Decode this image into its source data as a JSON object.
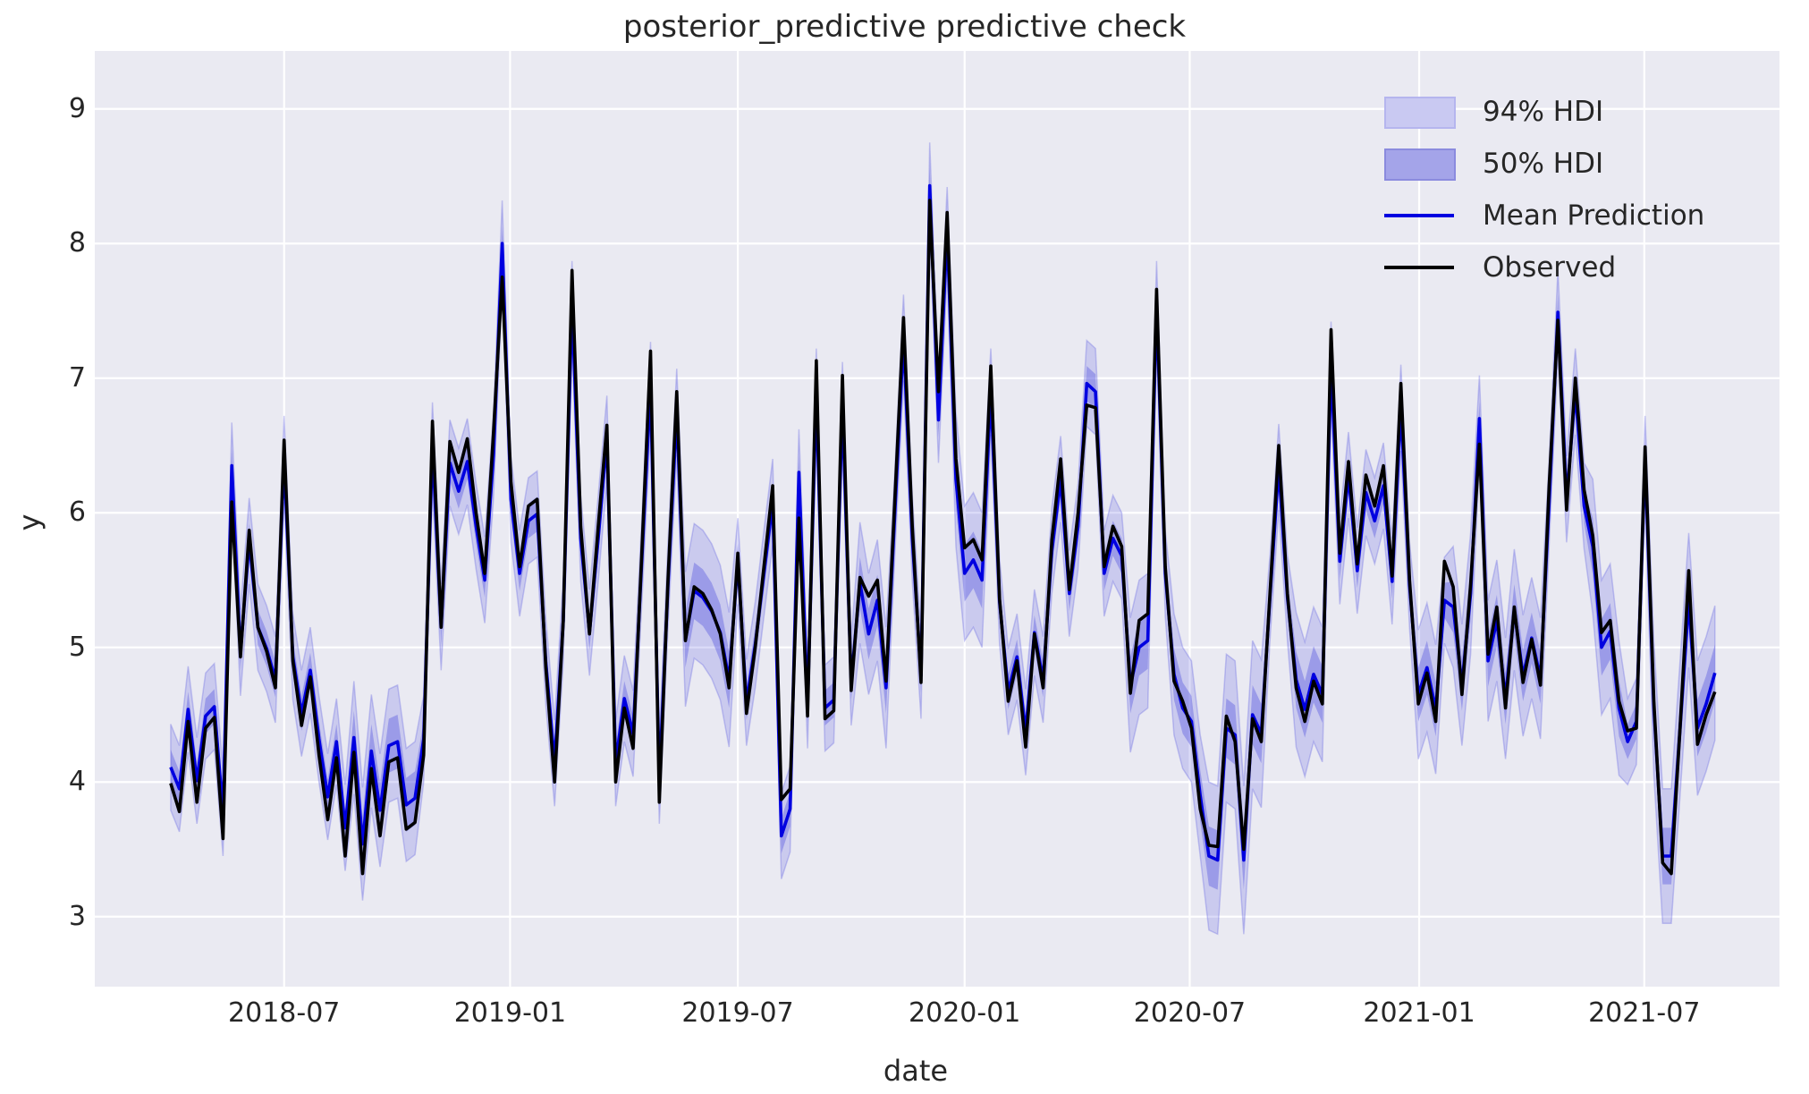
{
  "title": "posterior_predictive predictive check",
  "axes": {
    "xlabel": "date",
    "ylabel": "y",
    "y_ticks": [
      3,
      4,
      5,
      6,
      7,
      8,
      9
    ],
    "x_tick_labels": [
      "2018-07",
      "2019-01",
      "2019-07",
      "2020-01",
      "2020-07",
      "2021-01",
      "2021-07"
    ],
    "x_tick_weeks": [
      13.0,
      38.9,
      65.0,
      91.0,
      116.8,
      143.1,
      168.9
    ],
    "x_domain_weeks": [
      -8.7,
      184.4
    ],
    "ylim": [
      2.48,
      9.43
    ],
    "grid": "on"
  },
  "legend": {
    "items": [
      {
        "label": "94% HDI",
        "type": "patch",
        "key": "hdi94"
      },
      {
        "label": "50% HDI",
        "type": "patch",
        "key": "hdi50"
      },
      {
        "label": "Mean Prediction",
        "type": "line",
        "key": "mean"
      },
      {
        "label": "Observed",
        "type": "line",
        "key": "observed"
      }
    ]
  },
  "colors": {
    "figure_bg": "#ffffff",
    "axes_bg": "#eaeaf2",
    "grid": "#ffffff",
    "text": "#262626",
    "observed_line": "#000000",
    "mean_line": "#0000e0",
    "band94_fill": "rgba(90,90,224,0.22)",
    "band94_edge": "rgba(90,90,224,0.30)",
    "band50_fill": "rgba(90,90,224,0.42)",
    "legend_94_fill": "#c9c9f2",
    "legend_94_edge": "#b5b5ee",
    "legend_50_fill": "#a4a4e9",
    "legend_50_edge": "#8b8bde"
  },
  "chart_data": {
    "type": "line",
    "title": "posterior_predictive predictive check",
    "xlabel": "date",
    "ylabel": "y",
    "x_start_date": "2018-04-01",
    "x_step_days": 7,
    "n_points": 178,
    "series": [
      {
        "name": "Observed",
        "values": [
          3.99,
          3.78,
          4.45,
          3.85,
          4.4,
          4.48,
          3.58,
          6.08,
          4.93,
          5.87,
          5.15,
          4.97,
          4.7,
          6.54,
          4.9,
          4.42,
          4.78,
          4.2,
          3.72,
          4.18,
          3.45,
          4.22,
          3.32,
          4.1,
          3.6,
          4.15,
          4.18,
          3.65,
          3.7,
          4.2,
          6.68,
          5.15,
          6.53,
          6.3,
          6.55,
          6.0,
          5.55,
          6.6,
          7.75,
          6.23,
          5.6,
          6.05,
          6.1,
          4.85,
          4.0,
          5.2,
          7.8,
          5.9,
          5.1,
          5.9,
          6.65,
          4.0,
          4.55,
          4.25,
          5.7,
          7.2,
          3.85,
          5.5,
          6.9,
          5.05,
          5.45,
          5.4,
          5.28,
          5.1,
          4.7,
          5.7,
          4.51,
          5.0,
          5.6,
          6.2,
          3.87,
          3.95,
          5.96,
          4.49,
          7.13,
          4.47,
          4.53,
          7.02,
          4.68,
          5.52,
          5.38,
          5.5,
          4.75,
          6.1,
          7.45,
          5.9,
          4.74,
          8.32,
          6.9,
          8.23,
          6.4,
          5.74,
          5.8,
          5.65,
          7.09,
          5.36,
          4.6,
          4.9,
          4.26,
          5.1,
          4.7,
          5.8,
          6.4,
          5.43,
          6.0,
          6.8,
          6.78,
          5.6,
          5.9,
          5.75,
          4.66,
          5.2,
          5.25,
          7.66,
          5.6,
          4.75,
          4.6,
          4.4,
          3.8,
          3.53,
          3.52,
          4.49,
          4.3,
          3.5,
          4.47,
          4.3,
          5.4,
          6.5,
          5.4,
          4.7,
          4.45,
          4.75,
          4.58,
          7.36,
          5.7,
          6.38,
          5.62,
          6.28,
          6.05,
          6.35,
          5.53,
          6.96,
          5.5,
          4.58,
          4.81,
          4.45,
          5.64,
          5.45,
          4.65,
          5.47,
          6.51,
          4.95,
          5.3,
          4.55,
          5.3,
          4.74,
          5.06,
          4.72,
          6.2,
          7.43,
          6.02,
          7.0,
          6.17,
          5.83,
          5.11,
          5.2,
          4.6,
          4.38,
          4.4,
          6.49,
          4.6,
          3.4,
          3.32,
          4.4,
          5.57,
          4.28,
          4.5,
          4.67
        ]
      },
      {
        "name": "Mean Prediction",
        "values": [
          4.11,
          3.95,
          4.54,
          4.01,
          4.49,
          4.56,
          3.77,
          6.35,
          4.96,
          5.79,
          5.15,
          4.99,
          4.76,
          6.4,
          4.93,
          4.51,
          4.83,
          4.32,
          3.89,
          4.3,
          3.66,
          4.33,
          3.54,
          4.23,
          3.79,
          4.27,
          4.3,
          3.83,
          3.88,
          4.32,
          6.5,
          5.15,
          6.37,
          6.16,
          6.38,
          5.9,
          5.5,
          6.43,
          8.0,
          6.1,
          5.55,
          5.94,
          5.99,
          4.89,
          4.14,
          5.2,
          7.55,
          5.81,
          5.11,
          5.81,
          6.55,
          4.14,
          4.62,
          4.36,
          5.64,
          6.95,
          4.01,
          5.46,
          6.75,
          5.06,
          5.42,
          5.37,
          5.27,
          5.11,
          4.76,
          5.64,
          4.59,
          5.02,
          5.55,
          6.08,
          3.6,
          3.8,
          6.3,
          4.57,
          6.9,
          4.55,
          4.61,
          6.8,
          4.74,
          5.48,
          5.1,
          5.35,
          4.7,
          6.0,
          7.3,
          5.81,
          4.79,
          8.43,
          6.69,
          8.1,
          6.25,
          5.55,
          5.65,
          5.5,
          6.9,
          5.34,
          4.67,
          4.93,
          4.37,
          5.11,
          4.76,
          5.72,
          6.25,
          5.4,
          5.9,
          6.96,
          6.9,
          5.55,
          5.81,
          5.68,
          4.72,
          5.0,
          5.05,
          7.55,
          5.55,
          4.8,
          4.55,
          4.45,
          3.9,
          3.45,
          3.42,
          4.4,
          4.35,
          3.42,
          4.5,
          4.36,
          5.37,
          6.34,
          5.37,
          4.76,
          4.54,
          4.8,
          4.65,
          7.1,
          5.64,
          6.28,
          5.57,
          6.15,
          5.94,
          6.2,
          5.49,
          6.78,
          5.46,
          4.65,
          4.85,
          4.54,
          5.35,
          5.3,
          4.72,
          5.4,
          6.7,
          4.9,
          5.2,
          4.62,
          5.28,
          4.79,
          5.07,
          4.77,
          6.08,
          7.49,
          6.1,
          6.9,
          6.05,
          5.75,
          5.0,
          5.12,
          4.55,
          4.3,
          4.45,
          6.4,
          4.55,
          3.45,
          3.45,
          4.4,
          5.35,
          4.4,
          4.58,
          4.81
        ]
      }
    ],
    "bands": {
      "hdi94": {
        "label": "94% HDI",
        "center_series": "Mean Prediction",
        "halfwidth_default": 0.32,
        "halfwidth_regions": [
          {
            "from": 21,
            "to": 28,
            "half": 0.42
          },
          {
            "from": 59,
            "to": 64,
            "half": 0.5
          },
          {
            "from": 79,
            "to": 82,
            "half": 0.45
          },
          {
            "from": 90,
            "to": 93,
            "half": 0.5
          },
          {
            "from": 110,
            "to": 112,
            "half": 0.5
          },
          {
            "from": 115,
            "to": 118,
            "half": 0.45
          },
          {
            "from": 119,
            "to": 125,
            "half": 0.55
          },
          {
            "from": 129,
            "to": 132,
            "half": 0.5
          },
          {
            "from": 143,
            "to": 145,
            "half": 0.48
          },
          {
            "from": 147,
            "to": 149,
            "half": 0.45
          },
          {
            "from": 151,
            "to": 157,
            "half": 0.45
          },
          {
            "from": 163,
            "to": 166,
            "half": 0.5
          },
          {
            "from": 170,
            "to": 177,
            "half": 0.5
          }
        ]
      },
      "hdi50": {
        "label": "50% HDI",
        "center_series": "Mean Prediction",
        "halfwidth_default": 0.13,
        "halfwidth_regions": [
          {
            "from": 21,
            "to": 28,
            "half": 0.2
          },
          {
            "from": 59,
            "to": 64,
            "half": 0.21
          },
          {
            "from": 79,
            "to": 82,
            "half": 0.19
          },
          {
            "from": 90,
            "to": 93,
            "half": 0.21
          },
          {
            "from": 110,
            "to": 112,
            "half": 0.21
          },
          {
            "from": 115,
            "to": 118,
            "half": 0.19
          },
          {
            "from": 119,
            "to": 125,
            "half": 0.22
          },
          {
            "from": 129,
            "to": 132,
            "half": 0.21
          },
          {
            "from": 143,
            "to": 145,
            "half": 0.2
          },
          {
            "from": 147,
            "to": 149,
            "half": 0.19
          },
          {
            "from": 151,
            "to": 157,
            "half": 0.19
          },
          {
            "from": 163,
            "to": 166,
            "half": 0.21
          },
          {
            "from": 170,
            "to": 177,
            "half": 0.21
          }
        ]
      }
    }
  }
}
